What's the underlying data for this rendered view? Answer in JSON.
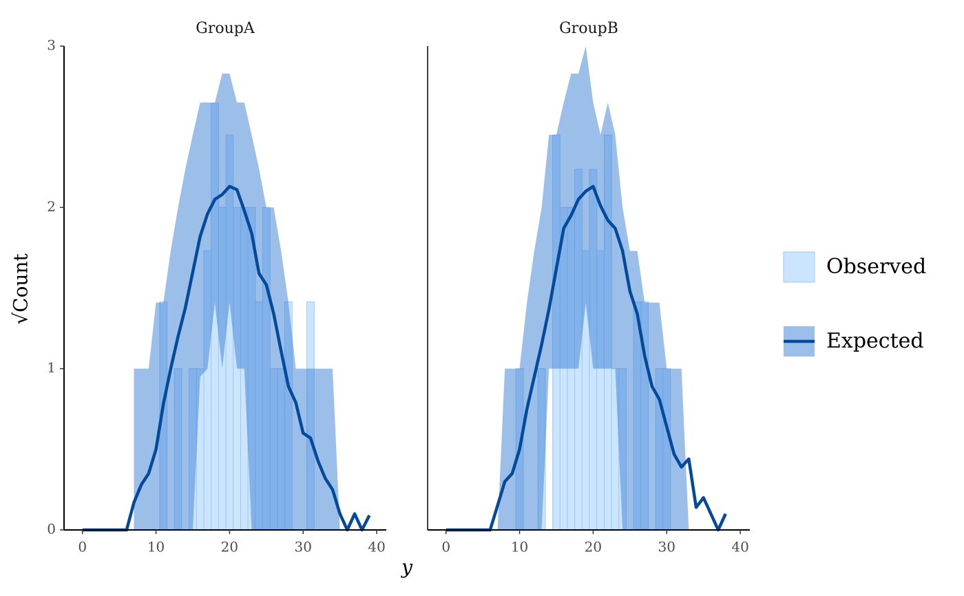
{
  "chart_data": {
    "type": "rootogram",
    "xlabel": "y",
    "ylabel": "√Count",
    "xlim": [
      -2.5,
      41.3
    ],
    "ylim": [
      0,
      3
    ],
    "xticks": [
      0,
      10,
      20,
      30,
      40
    ],
    "yticks": [
      0,
      1,
      2,
      3
    ],
    "series": [
      {
        "name": "Observed",
        "color": "#cce5ff",
        "edge": "#9fc8f2"
      },
      {
        "name": "Expected",
        "color": "#034b9a",
        "fill": "#3a7fd5"
      }
    ],
    "facets": [
      {
        "title": "GroupA",
        "x": [
          0,
          1,
          2,
          3,
          4,
          5,
          6,
          7,
          8,
          9,
          10,
          11,
          12,
          13,
          14,
          15,
          16,
          17,
          18,
          19,
          20,
          21,
          22,
          23,
          24,
          25,
          26,
          27,
          28,
          29,
          30,
          31,
          32,
          33,
          34,
          35,
          36,
          37,
          38,
          39,
          40
        ],
        "observed": [
          0,
          0,
          0,
          0,
          0,
          0,
          0,
          0,
          0,
          0,
          0,
          1.414,
          0,
          1,
          0,
          1,
          1,
          1.732,
          2.646,
          2,
          2.449,
          2,
          2,
          2,
          1.414,
          2,
          1,
          1,
          1.414,
          0,
          0,
          1.414,
          0,
          0,
          0,
          0,
          0,
          0,
          0,
          0,
          0
        ],
        "expected": [
          0,
          0,
          0,
          0,
          0,
          0,
          0,
          0.17,
          0.28,
          0.35,
          0.5,
          0.78,
          1.0,
          1.2,
          1.38,
          1.6,
          1.82,
          1.96,
          2.05,
          2.08,
          2.13,
          2.11,
          1.98,
          1.84,
          1.59,
          1.52,
          1.34,
          1.11,
          0.89,
          0.79,
          0.6,
          0.57,
          0.43,
          0.32,
          0.25,
          0.1,
          0,
          0.1,
          0,
          0.09,
          null
        ],
        "lower": [
          null,
          null,
          null,
          null,
          null,
          null,
          null,
          0,
          0,
          0,
          0,
          0,
          0,
          0,
          0,
          0,
          0.95,
          1,
          1.41,
          1,
          1.41,
          1,
          1,
          0,
          0,
          0,
          0,
          0,
          0,
          0,
          0,
          0,
          0,
          0,
          0,
          0,
          null,
          null,
          null,
          null,
          null
        ],
        "upper": [
          null,
          null,
          null,
          null,
          null,
          null,
          null,
          1,
          1,
          1,
          1.41,
          1.41,
          1.73,
          2,
          2.24,
          2.45,
          2.65,
          2.65,
          2.65,
          2.83,
          2.83,
          2.65,
          2.65,
          2.45,
          2.24,
          2,
          2,
          1.73,
          1.41,
          1.0,
          1,
          1,
          1,
          1,
          1,
          0,
          null,
          null,
          null,
          null,
          null
        ]
      },
      {
        "title": "GroupB",
        "x": [
          0,
          1,
          2,
          3,
          4,
          5,
          6,
          7,
          8,
          9,
          10,
          11,
          12,
          13,
          14,
          15,
          16,
          17,
          18,
          19,
          20,
          21,
          22,
          23,
          24,
          25,
          26,
          27,
          28,
          29,
          30,
          31,
          32,
          33,
          34,
          35,
          36,
          37,
          38,
          39,
          40
        ],
        "observed": [
          0,
          0,
          0,
          0,
          0,
          0,
          0,
          0,
          0,
          0,
          1,
          0,
          0,
          1,
          0,
          2.449,
          2,
          2,
          2.236,
          1.732,
          2.236,
          1.732,
          2.449,
          1,
          1,
          0,
          1.414,
          1.414,
          0,
          1,
          1,
          0,
          0,
          0,
          0,
          0,
          0,
          0,
          0,
          0,
          0
        ],
        "expected": [
          0,
          0,
          0,
          0,
          0,
          0,
          0,
          0.15,
          0.3,
          0.35,
          0.5,
          0.75,
          0.95,
          1.15,
          1.37,
          1.62,
          1.87,
          1.95,
          2.05,
          2.1,
          2.13,
          2.01,
          1.92,
          1.87,
          1.73,
          1.48,
          1.34,
          1.08,
          0.89,
          0.81,
          0.64,
          0.47,
          0.39,
          0.44,
          0.14,
          0.2,
          0.1,
          0,
          0.1,
          null,
          null
        ],
        "lower": [
          null,
          null,
          null,
          null,
          null,
          null,
          null,
          0,
          0,
          0,
          0,
          0,
          0,
          0,
          1,
          1,
          1,
          1,
          1,
          1.41,
          1,
          1,
          1,
          1,
          0,
          0,
          0,
          0,
          0,
          0,
          0,
          0,
          0,
          0,
          null,
          null,
          null,
          null,
          null,
          null,
          null
        ],
        "upper": [
          null,
          null,
          null,
          null,
          null,
          null,
          null,
          0,
          1,
          1,
          1,
          1.41,
          1.73,
          2,
          2.45,
          2.45,
          2.65,
          2.83,
          2.83,
          3,
          2.65,
          2.45,
          2.65,
          2.45,
          2,
          1.73,
          1.73,
          1.41,
          1.41,
          1.41,
          1,
          1,
          1,
          0,
          0,
          null,
          null,
          null,
          null,
          null,
          null
        ]
      }
    ]
  }
}
